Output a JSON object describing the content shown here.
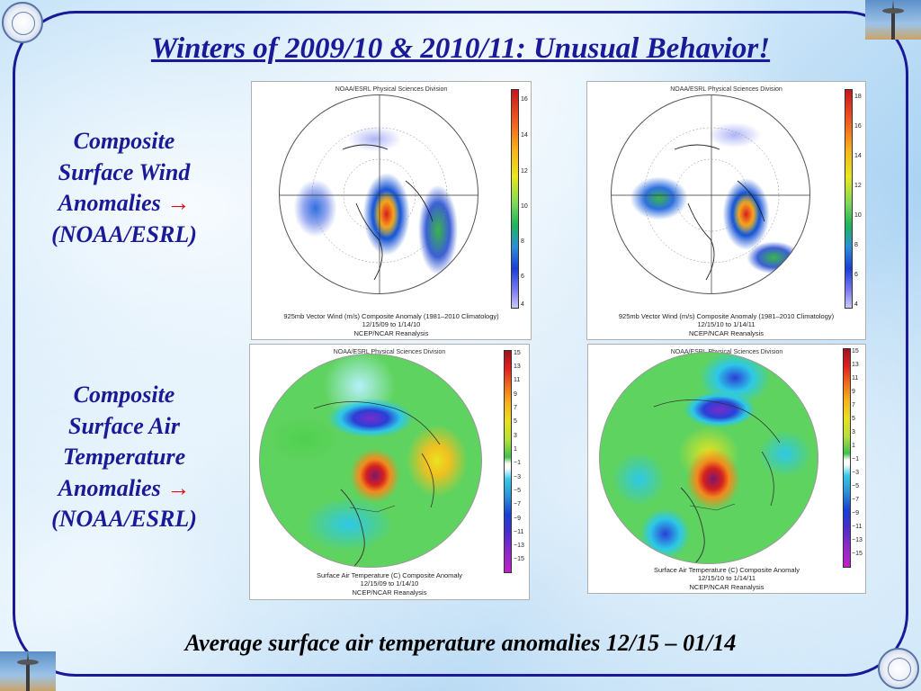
{
  "slide": {
    "title": "Winters of 2009/10 & 2010/11: Unusual Behavior!",
    "footer": "Average surface air temperature anomalies 12/15 – 01/14"
  },
  "labels": {
    "wind": {
      "lines": [
        "Composite",
        "Surface Wind",
        "Anomalies",
        "(NOAA/ESRL)"
      ],
      "arrow": "→"
    },
    "temp": {
      "lines": [
        "Composite",
        "Surface Air",
        "Temperature",
        "Anomalies",
        "(NOAA/ESRL)"
      ],
      "arrow": "→"
    }
  },
  "panels": [
    {
      "header": "NOAA/ESRL Physical Sciences Division",
      "caption1": "925mb Vector Wind (m/s) Composite Anomaly (1981–2010 Climatology)",
      "caption2": "12/15/09  to 1/14/10",
      "caption3": "NCEP/NCAR Reanalysis",
      "ticks": [
        "16",
        "14",
        "12",
        "10",
        "8",
        "6",
        "4"
      ]
    },
    {
      "header": "NOAA/ESRL Physical Sciences Division",
      "caption1": "925mb Vector Wind (m/s) Composite Anomaly (1981–2010 Climatology)",
      "caption2": "12/15/10  to 1/14/11",
      "caption3": "NCEP/NCAR Reanalysis",
      "ticks": [
        "18",
        "16",
        "14",
        "12",
        "10",
        "8",
        "6",
        "4"
      ]
    },
    {
      "header": "NOAA/ESRL Physical Sciences Division",
      "caption1": "Surface Air Temperature (C) Composite Anomaly",
      "caption2": "12/15/09  to 1/14/10",
      "caption3": "NCEP/NCAR Reanalysis",
      "ticks": [
        "15",
        "13",
        "11",
        "9",
        "7",
        "5",
        "3",
        "1",
        "−1",
        "−3",
        "−5",
        "−7",
        "−9",
        "−11",
        "−13",
        "−15"
      ]
    },
    {
      "header": "NOAA/ESRL Physical Sciences Division",
      "caption1": "Surface Air Temperature (C) Composite Anomaly",
      "caption2": "12/15/10  to 1/14/11",
      "caption3": "NCEP/NCAR Reanalysis",
      "ticks": [
        "15",
        "13",
        "11",
        "9",
        "7",
        "5",
        "3",
        "1",
        "−1",
        "−3",
        "−5",
        "−7",
        "−9",
        "−11",
        "−13",
        "−15"
      ]
    }
  ],
  "colors": {
    "title": "#1a1a99",
    "frame": "#1a1a99",
    "arrow": "#e01010",
    "footer": "#000000"
  }
}
